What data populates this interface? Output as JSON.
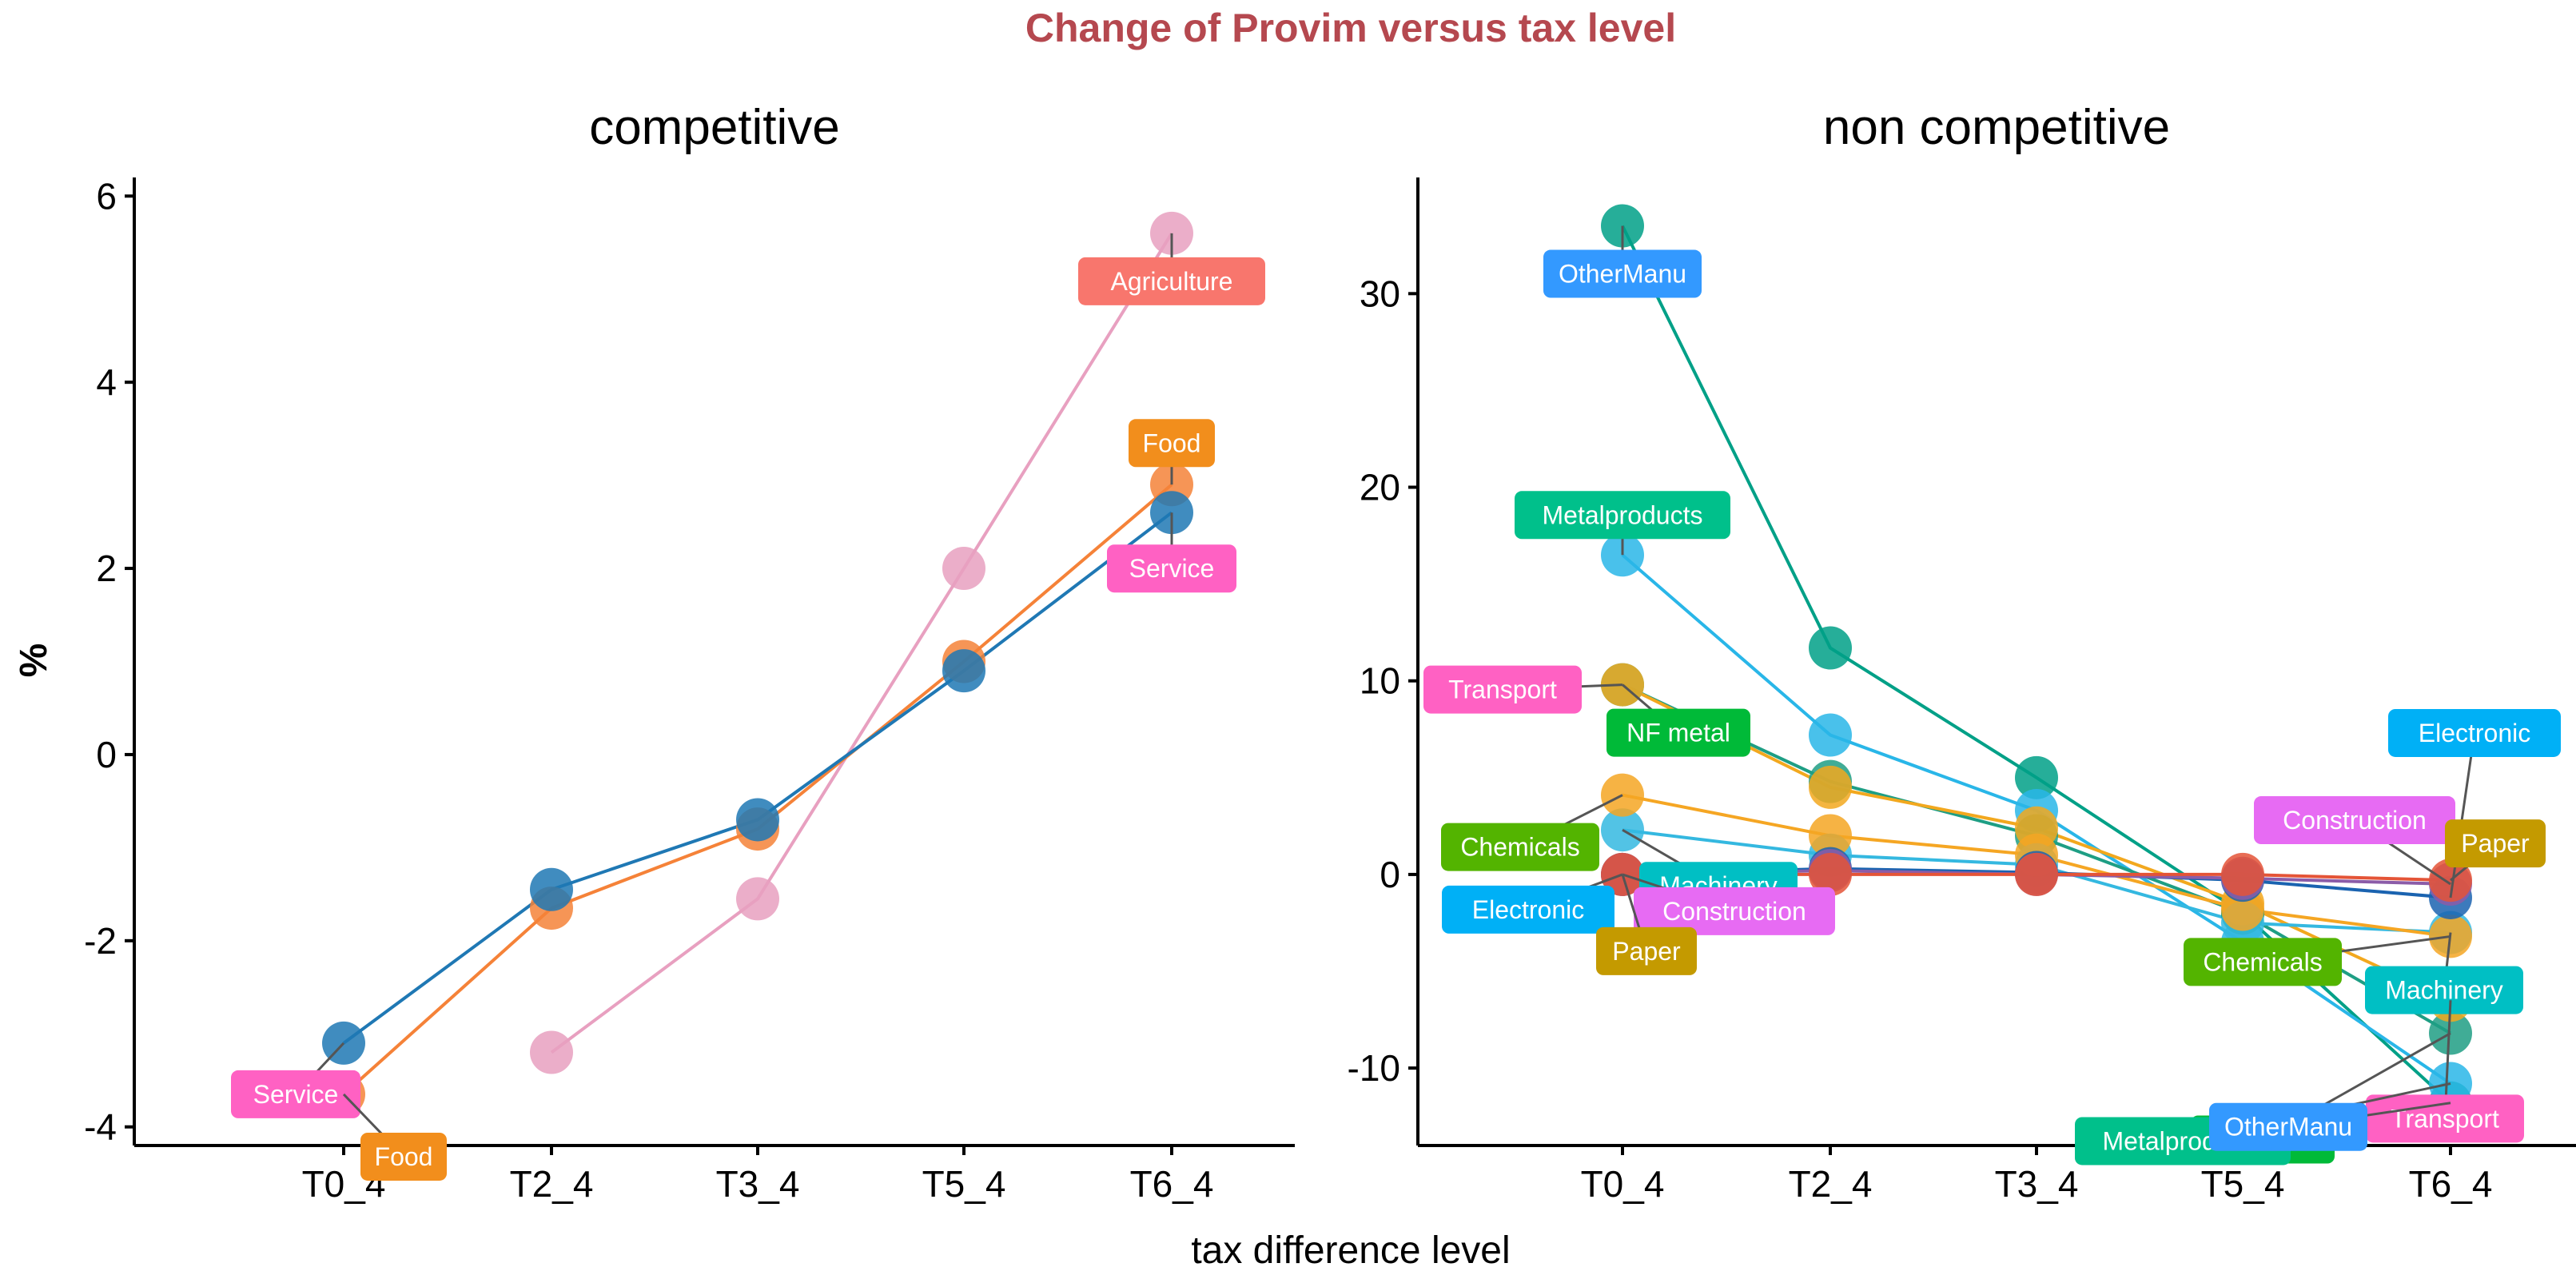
{
  "title": "Change of Provim versus tax level",
  "title_color": "#B5484F",
  "xlabel": "tax difference level",
  "ylabel": "%",
  "chart_data": [
    {
      "type": "line",
      "panel": "competitive",
      "title": "competitive",
      "categories": [
        "T0_4",
        "T2_4",
        "T3_4",
        "T5_4",
        "T6_4"
      ],
      "xlabel": "tax difference level",
      "ylabel": "%",
      "ylim": [
        -4.2,
        6.2
      ],
      "yticks": [
        -4,
        -2,
        0,
        2,
        4,
        6
      ],
      "ytick_labels": [
        "-4",
        "-2",
        "0",
        "2",
        "4",
        "6"
      ],
      "grid": false,
      "legend": "none",
      "series": [
        {
          "name": "Agriculture",
          "color": "#E8A0C0",
          "label_color": "#F8766D",
          "values": [
            null,
            -3.2,
            -1.55,
            2.0,
            5.6
          ]
        },
        {
          "name": "Food",
          "color": "#F58238",
          "label_color": "#F28E1C",
          "values": [
            -3.65,
            -1.65,
            -0.8,
            1.0,
            2.9
          ]
        },
        {
          "name": "Service",
          "color": "#1F78B4",
          "label_color": "#FF61C3",
          "values": [
            -3.1,
            -1.45,
            -0.7,
            0.9,
            2.6
          ]
        }
      ],
      "point_labels": [
        {
          "text": "Agriculture",
          "series": "Agriculture",
          "at": "T6_4"
        },
        {
          "text": "Food",
          "series": "Food",
          "at": "T6_4"
        },
        {
          "text": "Service",
          "series": "Service",
          "at": "T6_4"
        },
        {
          "text": "Service",
          "series": "Service",
          "at": "T0_4"
        },
        {
          "text": "Food",
          "series": "Food",
          "at": "T0_4"
        }
      ]
    },
    {
      "type": "line",
      "panel": "non competitive",
      "title": "non competitive",
      "categories": [
        "T0_4",
        "T2_4",
        "T3_4",
        "T5_4",
        "T6_4"
      ],
      "xlabel": "tax difference level",
      "ylabel": "%",
      "ylim": [
        -14,
        36
      ],
      "yticks": [
        -10,
        0,
        10,
        20,
        30
      ],
      "ytick_labels": [
        "-10",
        "0",
        "10",
        "20",
        "30"
      ],
      "grid": false,
      "legend": "none",
      "series": [
        {
          "name": "OtherManu",
          "color": "#00A087",
          "label_color": "#3399FF",
          "values": [
            33.5,
            11.7,
            5.0,
            -2.0,
            -11.8
          ]
        },
        {
          "name": "Metalproducts",
          "color": "#29B6E8",
          "label_color": "#00C08B",
          "values": [
            16.5,
            7.2,
            3.3,
            -3.5,
            -10.8
          ]
        },
        {
          "name": "NF metal",
          "color": "#1E9E84",
          "label_color": "#00BA38",
          "values": [
            9.8,
            4.8,
            2.0,
            -2.0,
            -8.2
          ]
        },
        {
          "name": "Transport",
          "color": "#F2A81E",
          "label_color": "#FF61C3",
          "values": [
            9.8,
            4.5,
            2.4,
            -1.5,
            -6.5
          ]
        },
        {
          "name": "Machinery",
          "color": "#34B8E0",
          "label_color": "#00BFC4",
          "values": [
            2.3,
            1.0,
            0.5,
            -2.5,
            -3.0
          ]
        },
        {
          "name": "Chemicals",
          "color": "#F5A623",
          "label_color": "#53B400",
          "values": [
            4.1,
            2.0,
            1.0,
            -1.8,
            -3.2
          ]
        },
        {
          "name": "Electronic",
          "color": "#1A63B0",
          "label_color": "#00B0F6",
          "values": [
            0.0,
            0.3,
            0.1,
            -0.3,
            -1.2
          ]
        },
        {
          "name": "Construction",
          "color": "#8B5CA8",
          "label_color": "#E76BF3",
          "values": [
            0.0,
            0.2,
            0.0,
            -0.2,
            -0.5
          ]
        },
        {
          "name": "Paper",
          "color": "#E45437",
          "label_color": "#C49A00",
          "values": [
            0.0,
            0.0,
            0.0,
            0.0,
            -0.3
          ]
        }
      ],
      "point_labels": [
        {
          "text": "OtherManu",
          "series": "OtherManu",
          "at": "T0_4"
        },
        {
          "text": "Metalproducts",
          "series": "Metalproducts",
          "at": "T0_4"
        },
        {
          "text": "NF metal",
          "series": "NF metal",
          "at": "T0_4"
        },
        {
          "text": "Transport",
          "series": "Transport",
          "at": "T0_4"
        },
        {
          "text": "Machinery",
          "series": "Machinery",
          "at": "T0_4"
        },
        {
          "text": "Chemicals",
          "series": "Chemicals",
          "at": "T0_4"
        },
        {
          "text": "Electronic",
          "series": "Electronic",
          "at": "T0_4"
        },
        {
          "text": "Construction",
          "series": "Construction",
          "at": "T0_4"
        },
        {
          "text": "Paper",
          "series": "Paper",
          "at": "T0_4"
        },
        {
          "text": "Electronic",
          "series": "Electronic",
          "at": "T6_4"
        },
        {
          "text": "Construction",
          "series": "Construction",
          "at": "T6_4"
        },
        {
          "text": "Paper",
          "series": "Paper",
          "at": "T6_4"
        },
        {
          "text": "Chemicals",
          "series": "Chemicals",
          "at": "T6_4"
        },
        {
          "text": "Machinery",
          "series": "Machinery",
          "at": "T6_4"
        },
        {
          "text": "NF metal",
          "series": "NF metal",
          "at": "T6_4"
        },
        {
          "text": "Transport",
          "series": "Transport",
          "at": "T6_4"
        },
        {
          "text": "Metalproducts",
          "series": "Metalproducts",
          "at": "T6_4"
        },
        {
          "text": "OtherManu",
          "series": "OtherManu",
          "at": "T6_4"
        }
      ]
    }
  ]
}
